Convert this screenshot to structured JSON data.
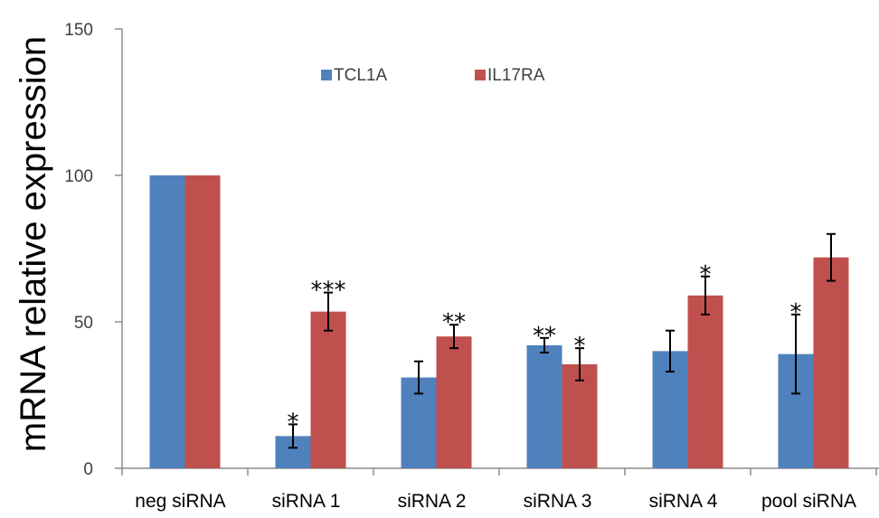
{
  "chart_data": {
    "type": "bar",
    "ylabel": "mRNA relative expression",
    "ylim": [
      0,
      150
    ],
    "yticks": [
      0,
      50,
      100,
      150
    ],
    "grid": false,
    "legend_position": "top",
    "categories": [
      "neg siRNA",
      "siRNA 1",
      "siRNA 2",
      "siRNA 3",
      "siRNA 4",
      "pool siRNA"
    ],
    "series": [
      {
        "name": "TCL1A",
        "color": "#4f81bd",
        "values": [
          100,
          11,
          31,
          42,
          40,
          39
        ],
        "errors": [
          0,
          4,
          5.5,
          2.5,
          7,
          13.5
        ],
        "significance": [
          "",
          "*",
          "",
          "**",
          "",
          "*"
        ]
      },
      {
        "name": "IL17RA",
        "color": "#c0504d",
        "values": [
          100,
          53.5,
          45,
          35.5,
          59,
          72
        ],
        "errors": [
          0,
          6.5,
          4,
          5.5,
          6.5,
          8
        ],
        "significance": [
          "",
          "***",
          "**",
          "*",
          "*",
          ""
        ]
      }
    ]
  }
}
